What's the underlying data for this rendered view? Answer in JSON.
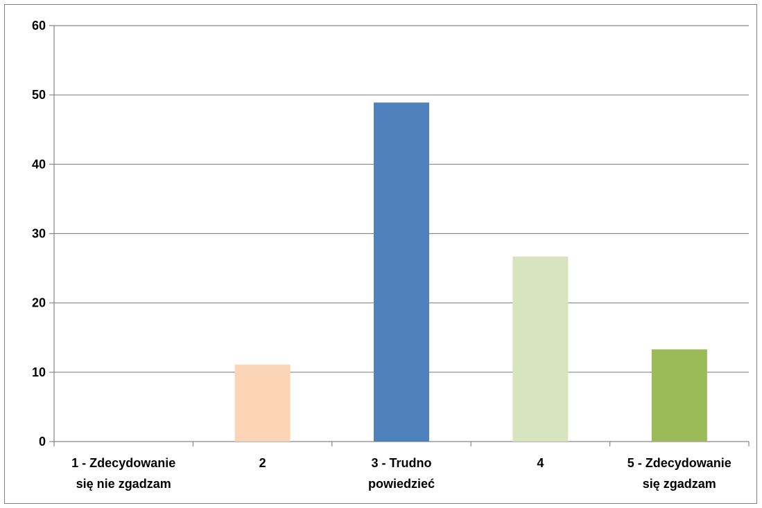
{
  "chart_data": {
    "type": "bar",
    "categories": [
      [
        "1 - Zdecydowanie",
        "się nie zgadzam"
      ],
      [
        "2"
      ],
      [
        "3 - Trudno",
        "powiedzieć"
      ],
      [
        "4"
      ],
      [
        "5 - Zdecydowanie",
        "się zgadzam"
      ]
    ],
    "values": [
      0,
      11.1,
      48.9,
      26.7,
      13.3
    ],
    "bar_colors": [
      "#4f81bd",
      "#fbd5b5",
      "#4f81bd",
      "#d7e4bd",
      "#9bbb59"
    ],
    "ylim": [
      0,
      60
    ],
    "yticks": [
      "0",
      "10",
      "20",
      "30",
      "40",
      "50",
      "60"
    ],
    "grid": true,
    "legend": "none",
    "colors": {
      "gridline": "#868686",
      "axis": "#868686",
      "text": "#000000"
    }
  }
}
